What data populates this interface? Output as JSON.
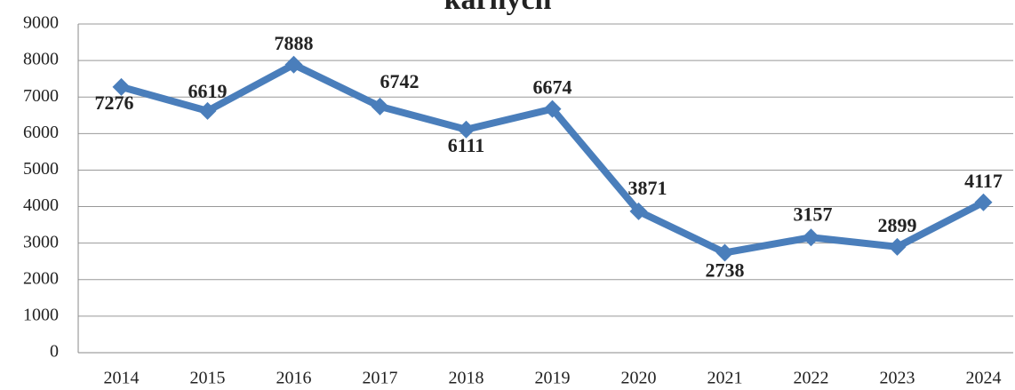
{
  "chart_data": {
    "type": "line",
    "title": "karnych",
    "categories": [
      "2014",
      "2015",
      "2016",
      "2017",
      "2018",
      "2019",
      "2020",
      "2021",
      "2022",
      "2023",
      "2024"
    ],
    "series": [
      {
        "name": "karnych",
        "color": "#4a7ebb",
        "values": [
          7276,
          6619,
          7888,
          6742,
          6111,
          6674,
          3871,
          2738,
          3157,
          2899,
          4117
        ]
      }
    ],
    "ylim": [
      0,
      9000
    ],
    "yticks": [
      0,
      1000,
      2000,
      3000,
      4000,
      5000,
      6000,
      7000,
      8000,
      9000
    ],
    "grid": true
  }
}
